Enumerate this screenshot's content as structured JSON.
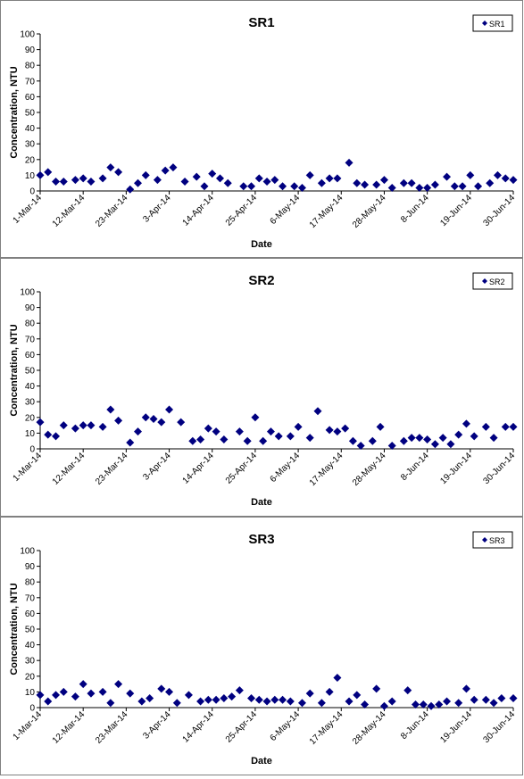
{
  "chart_data": [
    {
      "type": "scatter",
      "title": "SR1",
      "xlabel": "Date",
      "ylabel": "Concentration, NTU",
      "ylim": [
        0,
        100
      ],
      "yticks": [
        0,
        10,
        20,
        30,
        40,
        50,
        60,
        70,
        80,
        90,
        100
      ],
      "xticks": [
        "1-Mar-14",
        "12-Mar-14",
        "23-Mar-14",
        "3-Apr-14",
        "14-Apr-14",
        "25-Apr-14",
        "6-May-14",
        "17-May-14",
        "28-May-14",
        "8-Jun-14",
        "19-Jun-14",
        "30-Jun-14"
      ],
      "xlim": [
        "1-Mar-14",
        "30-Jun-14"
      ],
      "marker": "diamond",
      "legend": "top-right",
      "grid": false,
      "series": [
        {
          "name": "SR1",
          "color": "#000080",
          "x": [
            "1-Mar-14",
            "3-Mar-14",
            "5-Mar-14",
            "7-Mar-14",
            "10-Mar-14",
            "12-Mar-14",
            "14-Mar-14",
            "17-Mar-14",
            "19-Mar-14",
            "21-Mar-14",
            "24-Mar-14",
            "26-Mar-14",
            "28-Mar-14",
            "31-Mar-14",
            "2-Apr-14",
            "4-Apr-14",
            "7-Apr-14",
            "10-Apr-14",
            "12-Apr-14",
            "14-Apr-14",
            "16-Apr-14",
            "18-Apr-14",
            "22-Apr-14",
            "24-Apr-14",
            "26-Apr-14",
            "28-Apr-14",
            "30-Apr-14",
            "2-May-14",
            "5-May-14",
            "7-May-14",
            "9-May-14",
            "12-May-14",
            "14-May-14",
            "16-May-14",
            "19-May-14",
            "21-May-14",
            "23-May-14",
            "26-May-14",
            "28-May-14",
            "30-May-14",
            "2-Jun-14",
            "4-Jun-14",
            "6-Jun-14",
            "8-Jun-14",
            "10-Jun-14",
            "13-Jun-14",
            "15-Jun-14",
            "17-Jun-14",
            "19-Jun-14",
            "21-Jun-14",
            "24-Jun-14",
            "26-Jun-14",
            "28-Jun-14",
            "30-Jun-14"
          ],
          "y": [
            10,
            12,
            6,
            6,
            7,
            8,
            6,
            8,
            15,
            12,
            1,
            5,
            10,
            7,
            13,
            15,
            6,
            9,
            3,
            11,
            8,
            5,
            3,
            3,
            8,
            6,
            7,
            3,
            3,
            2,
            10,
            5,
            8,
            8,
            18,
            5,
            4,
            4,
            7,
            2,
            5,
            5,
            2,
            2,
            4,
            9,
            3,
            3,
            10,
            3,
            5,
            10,
            8,
            7
          ]
        }
      ]
    },
    {
      "type": "scatter",
      "title": "SR2",
      "xlabel": "Date",
      "ylabel": "Concentration, NTU",
      "ylim": [
        0,
        100
      ],
      "yticks": [
        0,
        10,
        20,
        30,
        40,
        50,
        60,
        70,
        80,
        90,
        100
      ],
      "xticks": [
        "1-Mar-14",
        "12-Mar-14",
        "23-Mar-14",
        "3-Apr-14",
        "14-Apr-14",
        "25-Apr-14",
        "6-May-14",
        "17-May-14",
        "28-May-14",
        "8-Jun-14",
        "19-Jun-14",
        "30-Jun-14"
      ],
      "xlim": [
        "1-Mar-14",
        "30-Jun-14"
      ],
      "marker": "diamond",
      "legend": "top-right",
      "grid": false,
      "series": [
        {
          "name": "SR2",
          "color": "#000080",
          "x": [
            "1-Mar-14",
            "3-Mar-14",
            "5-Mar-14",
            "7-Mar-14",
            "10-Mar-14",
            "12-Mar-14",
            "14-Mar-14",
            "17-Mar-14",
            "19-Mar-14",
            "21-Mar-14",
            "24-Mar-14",
            "26-Mar-14",
            "28-Mar-14",
            "30-Mar-14",
            "1-Apr-14",
            "3-Apr-14",
            "6-Apr-14",
            "9-Apr-14",
            "11-Apr-14",
            "13-Apr-14",
            "15-Apr-14",
            "17-Apr-14",
            "21-Apr-14",
            "23-Apr-14",
            "25-Apr-14",
            "27-Apr-14",
            "29-Apr-14",
            "1-May-14",
            "4-May-14",
            "6-May-14",
            "9-May-14",
            "11-May-14",
            "14-May-14",
            "16-May-14",
            "18-May-14",
            "20-May-14",
            "22-May-14",
            "25-May-14",
            "27-May-14",
            "30-May-14",
            "2-Jun-14",
            "4-Jun-14",
            "6-Jun-14",
            "8-Jun-14",
            "10-Jun-14",
            "12-Jun-14",
            "14-Jun-14",
            "16-Jun-14",
            "18-Jun-14",
            "20-Jun-14",
            "23-Jun-14",
            "25-Jun-14",
            "28-Jun-14",
            "30-Jun-14"
          ],
          "y": [
            17,
            9,
            8,
            15,
            13,
            15,
            15,
            14,
            25,
            18,
            4,
            11,
            20,
            19,
            17,
            25,
            17,
            5,
            6,
            13,
            11,
            6,
            11,
            5,
            20,
            5,
            11,
            8,
            8,
            14,
            7,
            24,
            12,
            11,
            13,
            5,
            2,
            5,
            14,
            2,
            5,
            7,
            7,
            6,
            3,
            7,
            3,
            9,
            16,
            8,
            14,
            7,
            14,
            14
          ]
        }
      ]
    },
    {
      "type": "scatter",
      "title": "SR3",
      "xlabel": "Date",
      "ylabel": "Concentration, NTU",
      "ylim": [
        0,
        100
      ],
      "yticks": [
        0,
        10,
        20,
        30,
        40,
        50,
        60,
        70,
        80,
        90,
        100
      ],
      "xticks": [
        "1-Mar-14",
        "12-Mar-14",
        "23-Mar-14",
        "3-Apr-14",
        "14-Apr-14",
        "25-Apr-14",
        "6-May-14",
        "17-May-14",
        "28-May-14",
        "8-Jun-14",
        "19-Jun-14",
        "30-Jun-14"
      ],
      "xlim": [
        "1-Mar-14",
        "30-Jun-14"
      ],
      "marker": "diamond",
      "legend": "top-right",
      "grid": false,
      "series": [
        {
          "name": "SR3",
          "color": "#000080",
          "x": [
            "1-Mar-14",
            "3-Mar-14",
            "5-Mar-14",
            "7-Mar-14",
            "10-Mar-14",
            "12-Mar-14",
            "14-Mar-14",
            "17-Mar-14",
            "19-Mar-14",
            "21-Mar-14",
            "24-Mar-14",
            "27-Mar-14",
            "29-Mar-14",
            "1-Apr-14",
            "3-Apr-14",
            "5-Apr-14",
            "8-Apr-14",
            "11-Apr-14",
            "13-Apr-14",
            "15-Apr-14",
            "17-Apr-14",
            "19-Apr-14",
            "21-Apr-14",
            "24-Apr-14",
            "26-Apr-14",
            "28-Apr-14",
            "30-Apr-14",
            "2-May-14",
            "4-May-14",
            "7-May-14",
            "9-May-14",
            "12-May-14",
            "14-May-14",
            "16-May-14",
            "19-May-14",
            "21-May-14",
            "23-May-14",
            "26-May-14",
            "28-May-14",
            "30-May-14",
            "3-Jun-14",
            "5-Jun-14",
            "7-Jun-14",
            "9-Jun-14",
            "11-Jun-14",
            "13-Jun-14",
            "16-Jun-14",
            "18-Jun-14",
            "20-Jun-14",
            "23-Jun-14",
            "25-Jun-14",
            "27-Jun-14",
            "30-Jun-14"
          ],
          "y": [
            8,
            4,
            8,
            10,
            7,
            15,
            9,
            10,
            3,
            15,
            9,
            4,
            6,
            12,
            10,
            3,
            8,
            4,
            5,
            5,
            6,
            7,
            11,
            6,
            5,
            4,
            5,
            5,
            4,
            3,
            9,
            3,
            10,
            19,
            4,
            8,
            2,
            12,
            1,
            4,
            11,
            2,
            2,
            1,
            2,
            4,
            3,
            12,
            5,
            5,
            3,
            6,
            6
          ]
        }
      ]
    }
  ]
}
